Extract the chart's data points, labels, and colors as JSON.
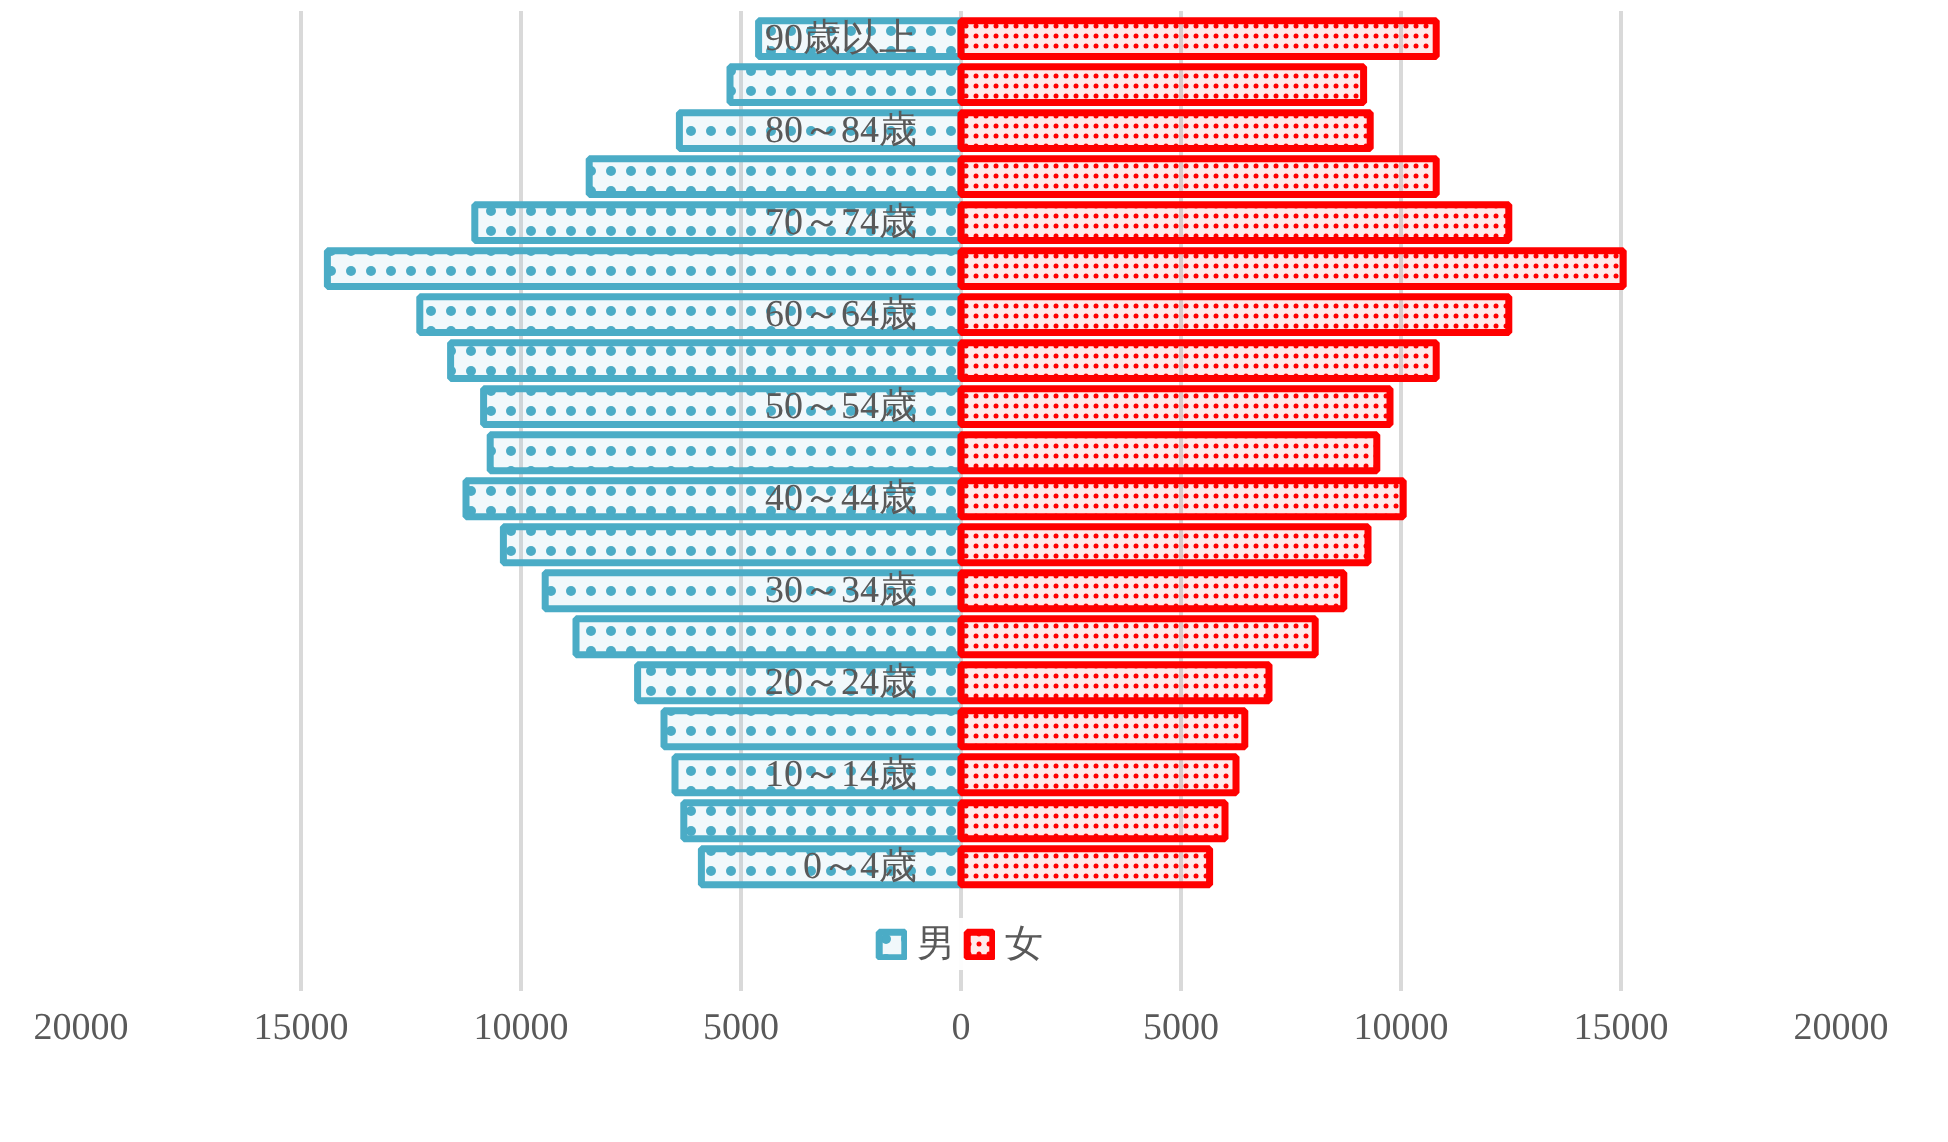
{
  "chart_data": {
    "type": "bar",
    "orientation": "horizontal",
    "categories": [
      "90歳以上",
      null,
      "80～84歳",
      null,
      "70～74歳",
      null,
      "60～64歳",
      null,
      "50～54歳",
      null,
      "40～44歳",
      null,
      "30～34歳",
      null,
      "20～24歳",
      null,
      "10～14歳",
      null,
      "0～4歳"
    ],
    "series": [
      {
        "name": "男",
        "color": "#4bacc6",
        "values": [
          -4600,
          -5250,
          -6400,
          -8450,
          -11050,
          -14400,
          -12300,
          -11600,
          -10850,
          -10700,
          -11250,
          -10400,
          -9450,
          -8750,
          -7350,
          -6750,
          -6500,
          -6300,
          -5900
        ]
      },
      {
        "name": "女",
        "color": "#ff0000",
        "values": [
          10800,
          9150,
          9300,
          10800,
          12450,
          15050,
          12450,
          10800,
          9750,
          9450,
          10050,
          9250,
          8700,
          8050,
          7000,
          6450,
          6250,
          6000,
          5650
        ]
      }
    ],
    "xlim": [
      -20000,
      20000
    ],
    "xticks": [
      {
        "value": -20000,
        "label": "20000"
      },
      {
        "value": -15000,
        "label": "15000"
      },
      {
        "value": -10000,
        "label": "10000"
      },
      {
        "value": -5000,
        "label": "5000"
      },
      0,
      5000,
      10000,
      15000,
      20000
    ],
    "grid": "x",
    "legend": "bottom"
  }
}
